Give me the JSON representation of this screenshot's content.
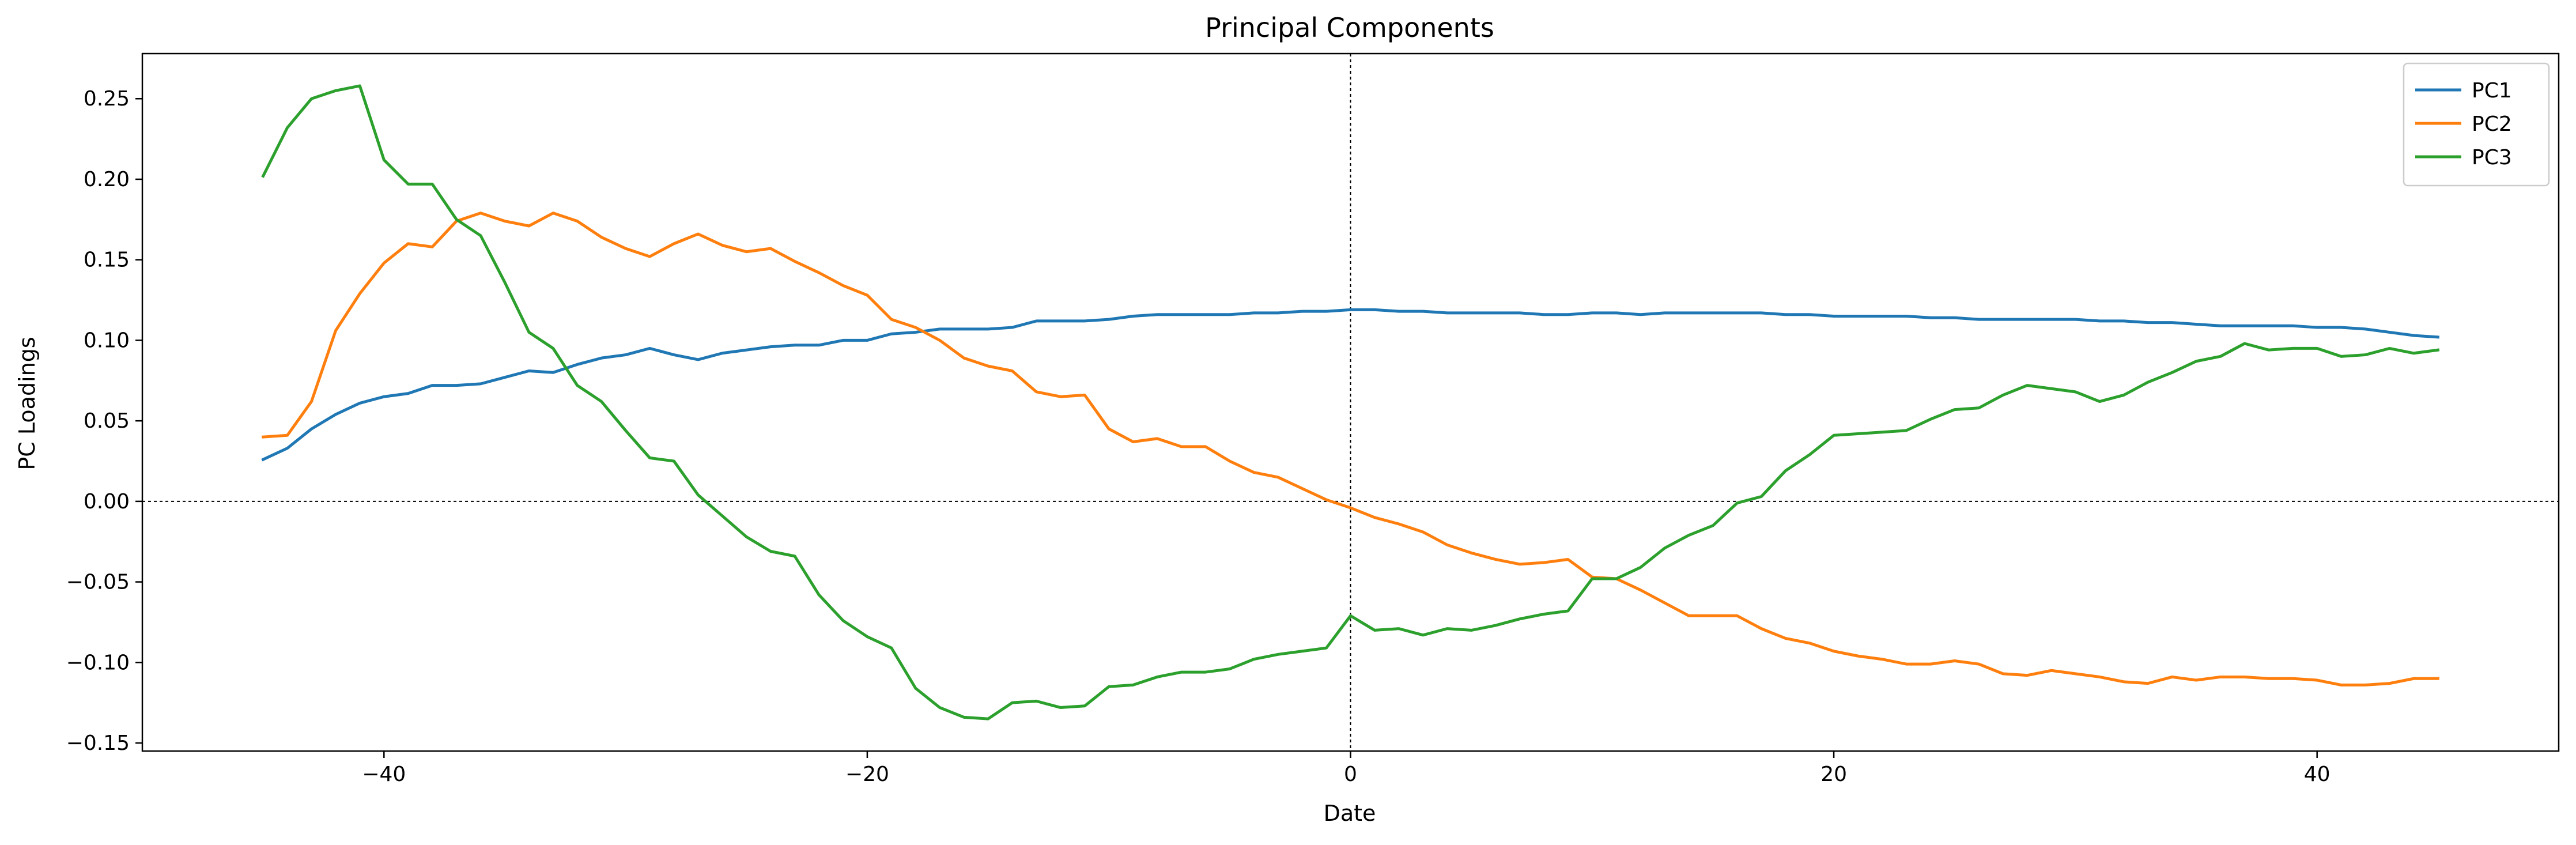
{
  "chart_data": {
    "type": "line",
    "title": "Principal Components",
    "xlabel": "Date",
    "ylabel": "PC Loadings",
    "xlim": [
      -50,
      50
    ],
    "ylim": [
      -0.155,
      0.278
    ],
    "xticks": [
      -40,
      -20,
      0,
      20,
      40
    ],
    "xtick_labels": [
      "−40",
      "−20",
      "0",
      "20",
      "40"
    ],
    "yticks": [
      -0.15,
      -0.1,
      -0.05,
      0.0,
      0.05,
      0.1,
      0.15,
      0.2,
      0.25
    ],
    "ytick_labels": [
      "−0.15",
      "−0.10",
      "−0.05",
      "0.00",
      "0.05",
      "0.10",
      "0.15",
      "0.20",
      "0.25"
    ],
    "grid": false,
    "legend_position": "top-right",
    "reference_lines": {
      "vertical_x": 0,
      "horizontal_y": 0
    },
    "x": [
      -45,
      -44,
      -43,
      -42,
      -41,
      -40,
      -39,
      -38,
      -37,
      -36,
      -35,
      -34,
      -33,
      -32,
      -31,
      -30,
      -29,
      -28,
      -27,
      -26,
      -25,
      -24,
      -23,
      -22,
      -21,
      -20,
      -19,
      -18,
      -17,
      -16,
      -15,
      -14,
      -13,
      -12,
      -11,
      -10,
      -9,
      -8,
      -7,
      -6,
      -5,
      -4,
      -3,
      -2,
      -1,
      0,
      1,
      2,
      3,
      4,
      5,
      6,
      7,
      8,
      9,
      10,
      11,
      12,
      13,
      14,
      15,
      16,
      17,
      18,
      19,
      20,
      21,
      22,
      23,
      24,
      25,
      26,
      27,
      28,
      29,
      30,
      31,
      32,
      33,
      34,
      35,
      36,
      37,
      38,
      39,
      40,
      41,
      42,
      43,
      44,
      45
    ],
    "series": [
      {
        "name": "PC1",
        "color": "#1f77b4",
        "values": [
          0.026,
          0.033,
          0.045,
          0.054,
          0.061,
          0.065,
          0.067,
          0.072,
          0.072,
          0.073,
          0.077,
          0.081,
          0.08,
          0.085,
          0.089,
          0.091,
          0.095,
          0.091,
          0.088,
          0.092,
          0.094,
          0.096,
          0.097,
          0.097,
          0.1,
          0.1,
          0.104,
          0.105,
          0.107,
          0.107,
          0.107,
          0.108,
          0.112,
          0.112,
          0.112,
          0.113,
          0.115,
          0.116,
          0.116,
          0.116,
          0.116,
          0.117,
          0.117,
          0.118,
          0.118,
          0.119,
          0.119,
          0.118,
          0.118,
          0.117,
          0.117,
          0.117,
          0.117,
          0.116,
          0.116,
          0.117,
          0.117,
          0.116,
          0.117,
          0.117,
          0.117,
          0.117,
          0.117,
          0.116,
          0.116,
          0.115,
          0.115,
          0.115,
          0.115,
          0.114,
          0.114,
          0.113,
          0.113,
          0.113,
          0.113,
          0.113,
          0.112,
          0.112,
          0.111,
          0.111,
          0.11,
          0.109,
          0.109,
          0.109,
          0.109,
          0.108,
          0.108,
          0.107,
          0.105,
          0.103,
          0.102
        ]
      },
      {
        "name": "PC2",
        "color": "#ff7f0e",
        "values": [
          0.04,
          0.041,
          0.062,
          0.106,
          0.129,
          0.148,
          0.16,
          0.158,
          0.174,
          0.179,
          0.174,
          0.171,
          0.179,
          0.174,
          0.164,
          0.157,
          0.152,
          0.16,
          0.166,
          0.159,
          0.155,
          0.157,
          0.149,
          0.142,
          0.134,
          0.128,
          0.113,
          0.108,
          0.1,
          0.089,
          0.084,
          0.081,
          0.068,
          0.065,
          0.066,
          0.045,
          0.037,
          0.039,
          0.034,
          0.034,
          0.025,
          0.018,
          0.015,
          0.008,
          0.001,
          -0.004,
          -0.01,
          -0.014,
          -0.019,
          -0.027,
          -0.032,
          -0.036,
          -0.039,
          -0.038,
          -0.036,
          -0.047,
          -0.048,
          -0.055,
          -0.063,
          -0.071,
          -0.071,
          -0.071,
          -0.079,
          -0.085,
          -0.088,
          -0.093,
          -0.096,
          -0.098,
          -0.101,
          -0.101,
          -0.099,
          -0.101,
          -0.107,
          -0.108,
          -0.105,
          -0.107,
          -0.109,
          -0.112,
          -0.113,
          -0.109,
          -0.111,
          -0.109,
          -0.109,
          -0.11,
          -0.11,
          -0.111,
          -0.114,
          -0.114,
          -0.113,
          -0.11,
          -0.11
        ]
      },
      {
        "name": "PC3",
        "color": "#2ca02c",
        "values": [
          0.202,
          0.232,
          0.25,
          0.255,
          0.258,
          0.212,
          0.197,
          0.197,
          0.175,
          0.165,
          0.136,
          0.105,
          0.095,
          0.072,
          0.062,
          0.044,
          0.027,
          0.025,
          0.004,
          -0.009,
          -0.022,
          -0.031,
          -0.034,
          -0.058,
          -0.074,
          -0.084,
          -0.091,
          -0.116,
          -0.128,
          -0.134,
          -0.135,
          -0.125,
          -0.124,
          -0.128,
          -0.127,
          -0.115,
          -0.114,
          -0.109,
          -0.106,
          -0.106,
          -0.104,
          -0.098,
          -0.095,
          -0.093,
          -0.091,
          -0.071,
          -0.08,
          -0.079,
          -0.083,
          -0.079,
          -0.08,
          -0.077,
          -0.073,
          -0.07,
          -0.068,
          -0.048,
          -0.048,
          -0.041,
          -0.029,
          -0.021,
          -0.015,
          -0.001,
          0.003,
          0.019,
          0.029,
          0.041,
          0.042,
          0.043,
          0.044,
          0.051,
          0.057,
          0.058,
          0.066,
          0.072,
          0.07,
          0.068,
          0.062,
          0.066,
          0.074,
          0.08,
          0.087,
          0.09,
          0.098,
          0.094,
          0.095,
          0.095,
          0.09,
          0.091,
          0.095,
          0.092,
          0.094
        ]
      }
    ]
  }
}
